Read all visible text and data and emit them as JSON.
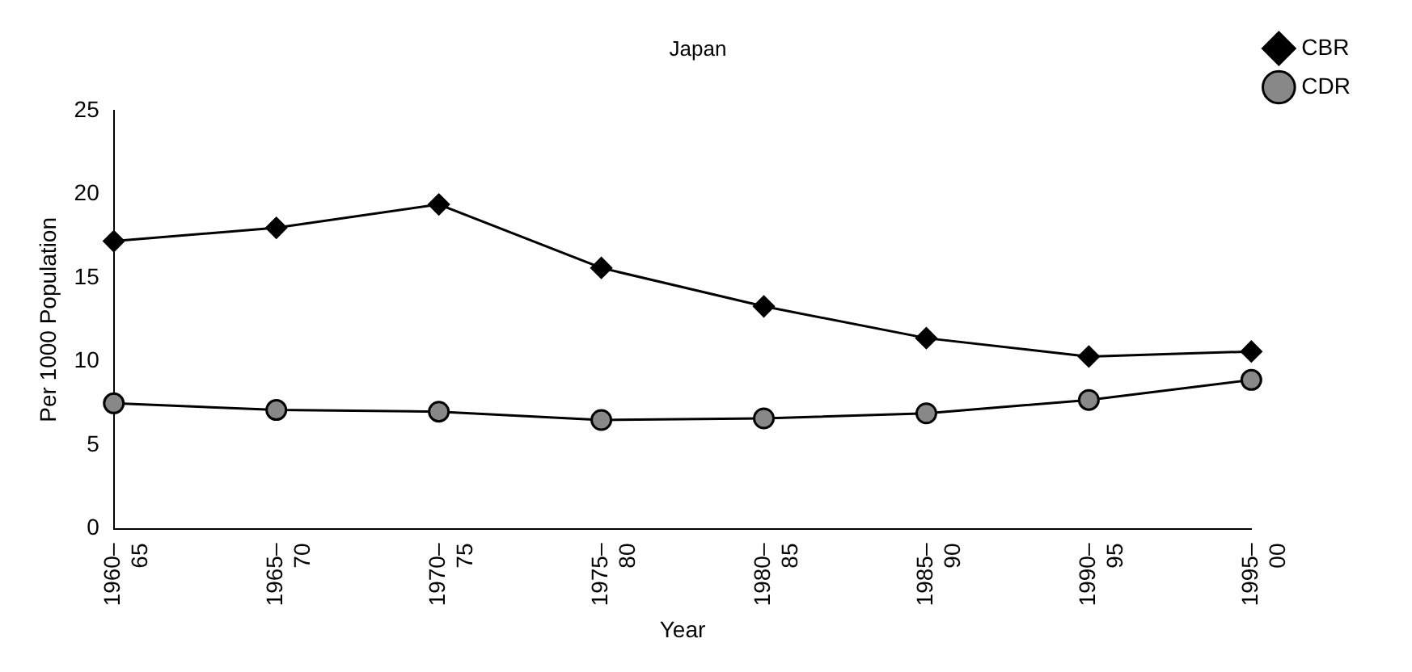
{
  "chart_data": {
    "type": "line",
    "title": "Japan",
    "xlabel": "Year",
    "ylabel": "Per 1000 Population",
    "categories": [
      "1960–65",
      "1965–70",
      "1970–75",
      "1975–80",
      "1980–85",
      "1985–90",
      "1990–95",
      "1995–00"
    ],
    "series": [
      {
        "name": "CBR",
        "color": "#000000",
        "marker": "diamond",
        "values": [
          17.2,
          18.0,
          19.4,
          15.6,
          13.3,
          11.4,
          10.3,
          10.6
        ]
      },
      {
        "name": "CDR",
        "color": "#000000",
        "marker": "circle",
        "values": [
          7.5,
          7.1,
          7.0,
          6.5,
          6.6,
          6.9,
          7.7,
          8.9
        ]
      }
    ],
    "ylim": [
      0,
      25
    ],
    "yticks": [
      0,
      5,
      10,
      15,
      20,
      25
    ],
    "grid": false,
    "legend": "top right",
    "line_style": "solid"
  }
}
